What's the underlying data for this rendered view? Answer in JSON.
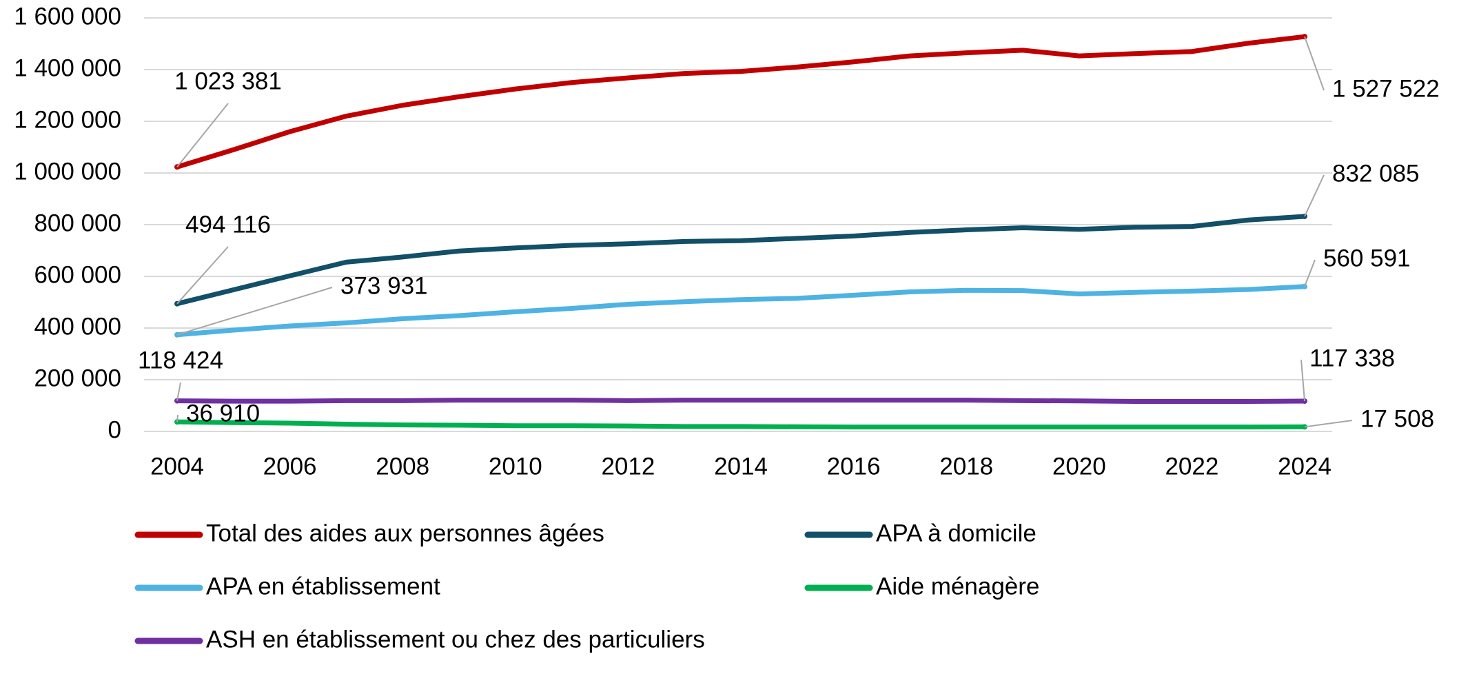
{
  "chart_data": {
    "type": "line",
    "x": [
      2004,
      2005,
      2006,
      2007,
      2008,
      2009,
      2010,
      2011,
      2012,
      2013,
      2014,
      2015,
      2016,
      2017,
      2018,
      2019,
      2020,
      2021,
      2022,
      2023,
      2024
    ],
    "xlim": [
      2004,
      2024
    ],
    "xticks": [
      2004,
      2006,
      2008,
      2010,
      2012,
      2014,
      2016,
      2018,
      2020,
      2022,
      2024
    ],
    "ylim": [
      0,
      1600000
    ],
    "yticks": [
      0,
      {
        "value": 200000,
        "label": "200 000"
      },
      {
        "value": 400000,
        "label": "400 000"
      },
      {
        "value": 600000,
        "label": "600 000"
      },
      {
        "value": 800000,
        "label": "800 000"
      },
      {
        "value": 1000000,
        "label": "1 000 000"
      },
      {
        "value": 1200000,
        "label": "1 200 000"
      },
      {
        "value": 1400000,
        "label": "1 400 000"
      },
      {
        "value": 1600000,
        "label": "1 600 000"
      }
    ],
    "grid": true,
    "legend": "bottom",
    "series": [
      {
        "name": "Total des aides aux personnes âgées",
        "color": "#c00000",
        "values": [
          1023381,
          1090000,
          1160000,
          1220000,
          1262000,
          1295000,
          1325000,
          1350000,
          1368000,
          1385000,
          1393000,
          1410000,
          1430000,
          1453000,
          1465000,
          1475000,
          1453000,
          1462000,
          1470000,
          1502000,
          1527522
        ],
        "value_labels": [
          "1 023 381",
          null,
          null,
          null,
          null,
          null,
          null,
          null,
          null,
          null,
          null,
          null,
          null,
          null,
          null,
          null,
          null,
          null,
          null,
          null,
          "1 527 522"
        ]
      },
      {
        "name": "APA à domicile",
        "color": "#124f68",
        "values": [
          494116,
          548000,
          602000,
          655000,
          675000,
          698000,
          710000,
          720000,
          726000,
          735000,
          738000,
          747000,
          756000,
          770000,
          780000,
          788000,
          782000,
          790000,
          793000,
          818000,
          832085
        ],
        "value_labels": [
          "494 116",
          null,
          null,
          null,
          null,
          null,
          null,
          null,
          null,
          null,
          null,
          null,
          null,
          null,
          null,
          null,
          null,
          null,
          null,
          null,
          "832 085"
        ]
      },
      {
        "name": "APA en établissement",
        "color": "#4eb3e3",
        "values": [
          373931,
          392000,
          408000,
          420000,
          436000,
          448000,
          463000,
          476000,
          492000,
          502000,
          510000,
          515000,
          527000,
          540000,
          546000,
          545000,
          532000,
          538000,
          543000,
          549000,
          560591
        ],
        "value_labels": [
          "373 931",
          null,
          null,
          null,
          null,
          null,
          null,
          null,
          null,
          null,
          null,
          null,
          null,
          null,
          null,
          null,
          null,
          null,
          null,
          null,
          "560 591"
        ]
      },
      {
        "name": "Aide ménagère",
        "color": "#00b050",
        "values": [
          36910,
          34000,
          32000,
          28000,
          25000,
          24000,
          22000,
          22000,
          21000,
          19000,
          19000,
          18000,
          17000,
          17000,
          17000,
          17000,
          17000,
          17000,
          17000,
          17000,
          17508
        ],
        "value_labels": [
          "36 910",
          null,
          null,
          null,
          null,
          null,
          null,
          null,
          null,
          null,
          null,
          null,
          null,
          null,
          null,
          null,
          null,
          null,
          null,
          null,
          "17 508"
        ]
      },
      {
        "name": "ASH en établissement ou chez des particuliers",
        "color": "#7030a0",
        "values": [
          118424,
          117000,
          117000,
          119000,
          119000,
          121000,
          121000,
          121000,
          119000,
          121000,
          121000,
          121000,
          121000,
          121000,
          121000,
          119000,
          118000,
          116000,
          116000,
          116000,
          117338
        ],
        "value_labels": [
          "118 424",
          null,
          null,
          null,
          null,
          null,
          null,
          null,
          null,
          null,
          null,
          null,
          null,
          null,
          null,
          null,
          null,
          null,
          null,
          null,
          "117 338"
        ]
      }
    ]
  }
}
